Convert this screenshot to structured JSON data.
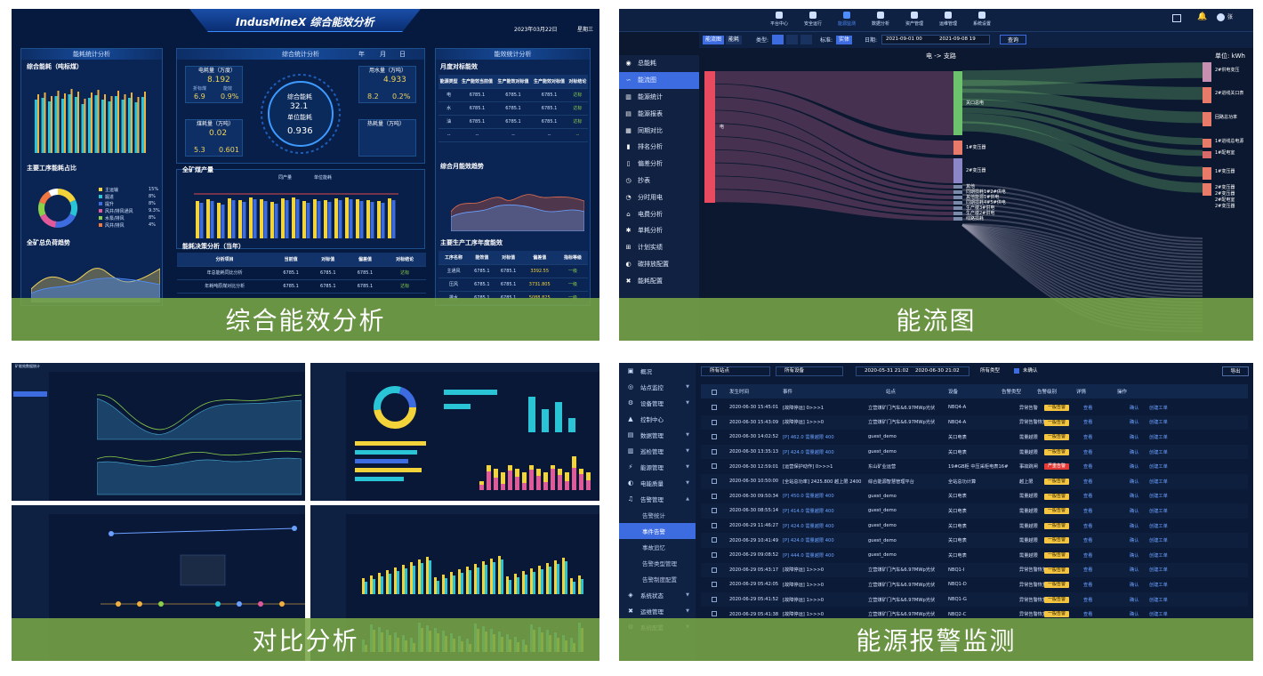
{
  "captions": {
    "p1": "综合能效分析",
    "p2": "能流图",
    "p3": "对比分析",
    "p4": "能源报警监测"
  },
  "p1": {
    "title": "IndusMineX 综合能效分析",
    "date": "2023年03月22日",
    "weekday": "星期三",
    "left_head": "能耗统计分析",
    "center_head": "综合统计分析",
    "right_head": "能效统计分析",
    "sec_total": "综合能耗（吨标煤）",
    "sec_process": "主要工序能耗占比",
    "sec_load": "全矿总负荷趋势",
    "sec_output": "全矿煤产量",
    "sec_decision": "能耗决策分析（当年）",
    "sec_month": "月度对标能效",
    "sec_trend": "综合月能效趋势",
    "sec_year": "主要生产工序年度能效",
    "tab_year": "年",
    "tab_month": "月",
    "tab_day": "日",
    "elec_label": "电耗量（万度）",
    "elec_value": "8.192",
    "gas_label": "用水量（万吨）",
    "gas_value": "4.933",
    "heat_label": "煤耗量（万吨）",
    "heat_value": "0.02",
    "steam_label": "热耗量（万吨）",
    "steam_value": "",
    "k1a": "折标煤",
    "k1b": "能效",
    "k1v1": "6.9",
    "k1v2": "0.9%",
    "k2v1": "8.2",
    "k2v2": "0.2%",
    "k3v1": "5.3",
    "k3v2": "0.601",
    "ring_title": "综合能耗",
    "ring_value": "32.1",
    "ring_unit": "单位能耗",
    "ring_value2": "0.936",
    "legend_a": "同产量",
    "legend_b": "单位能耗",
    "month_cols": [
      "能源类型",
      "生产能效当前值",
      "生产能效对标值",
      "生产能效对标值",
      "对标结论"
    ],
    "month_rows": [
      [
        "电",
        "6785.1",
        "6785.1",
        "6785.1",
        "达标"
      ],
      [
        "水",
        "6785.1",
        "6785.1",
        "6785.1",
        "达标"
      ],
      [
        "油",
        "6785.1",
        "6785.1",
        "6785.1",
        "达标"
      ],
      [
        "--",
        "--",
        "--",
        "--",
        "--"
      ]
    ],
    "dec_cols": [
      "分析项目",
      "当前值",
      "对标值",
      "偏差值",
      "对标结论"
    ],
    "dec_rows": [
      [
        "年总能耗同比分析",
        "6785.1",
        "6785.1",
        "6785.1",
        "达标"
      ],
      [
        "年耗吨原煤对比分析",
        "6785.1",
        "6785.1",
        "6785.1",
        "达标"
      ]
    ],
    "year_cols": [
      "工序名称",
      "能效值",
      "对标值",
      "偏差值",
      "指标等级"
    ],
    "year_rows": [
      [
        "主通风",
        "6785.1",
        "6785.1",
        "3392.55",
        "一级"
      ],
      [
        "压风",
        "6785.1",
        "6785.1",
        "3731.805",
        "一级"
      ],
      [
        "排水",
        "6785.1",
        "6785.1",
        "5088.825",
        "一级"
      ]
    ],
    "donut_items": [
      "主运输",
      "掘进",
      "提升",
      "风井/排风通风",
      "水泵/排风",
      "风井/排风"
    ],
    "donut_pcts": [
      "15%",
      "8%",
      "8%",
      "9.3%",
      "8%",
      "4%"
    ]
  },
  "p2": {
    "nav": [
      "平台中心",
      "安全运行",
      "能源监测",
      "数据分析",
      "资产管理",
      "运维管理",
      "系统设置"
    ],
    "tabs": [
      "能流图",
      "能耗"
    ],
    "period": "类型:",
    "unit_label": "标准:",
    "unit_value": "实体",
    "date_label": "日期:",
    "date_from": "2021-09-01 00",
    "date_to": "2021-09-08 19",
    "query": "查询",
    "chart_title": "电 -> 支路",
    "unit": "单位: kWh",
    "user": "张",
    "side": [
      "总能耗",
      "能流图",
      "能源统计",
      "能源报表",
      "同期对比",
      "排名分析",
      "偏差分析",
      "抄表",
      "分时用电",
      "电费分析",
      "单耗分析",
      "计划实绩",
      "碳排放配置",
      "能耗配置"
    ],
    "src": "电",
    "mid": [
      "关口总电",
      "1#变压器",
      "2#变压器",
      "其他",
      "同期损耗1#2#供电",
      "其他能源1#供电",
      "同期损耗4#5#供电",
      "生产楼3#供电",
      "生产楼2#供电",
      "线路损耗"
    ],
    "right": [
      "2#供电变压",
      "2#进线关口表",
      "回路总功率",
      "1#进线总电源",
      "1#配电室",
      "1#变压器",
      "2#变压器",
      "2#变压器",
      "2#配电室",
      "2#变压器"
    ]
  },
  "p3": {
    "title": "矿能效数据统计"
  },
  "p4": {
    "filters": {
      "station": "所有站点",
      "device": "所有设备",
      "date_from": "2020-05-31 21:02",
      "date_to": "2020-06-30 21:02",
      "type": "所有类型",
      "unconfirmed": "未确认",
      "export": "导出"
    },
    "cols": [
      "发生时间",
      "事件",
      "站点",
      "设备",
      "告警类型",
      "告警级别",
      "详情",
      "操作"
    ],
    "side": [
      "概况",
      "站点监控",
      "设备管理",
      "控制中心",
      "数据管理",
      "巡检管理",
      "能源管理",
      "电能质量",
      "告警管理",
      "告警统计",
      "事件告警",
      "事故追忆",
      "告警类型管理",
      "告警制度配置",
      "系统状态",
      "运维管理",
      "系统配置"
    ],
    "view": "查看",
    "ack": "确认",
    "ticket": "创建工单",
    "rows": [
      [
        "2020-06-30 15:45:01",
        "[故障停运] 0>>>1",
        "立营煤矿门汽车&6.97MWp光伏",
        "NBQ4-A",
        "异常告警",
        "一般告警"
      ],
      [
        "2020-06-30 15:43:09",
        "[故障停运] 1>>>0",
        "立营煤矿门汽车&6.97MWp光伏",
        "NBQ4-A",
        "异常告警恢复",
        "一般告警"
      ],
      [
        "2020-06-30 14:02:52",
        "[P] 462.0 需量越限 400",
        "guest_demo",
        "关口电表",
        "需量越限",
        "一般告警"
      ],
      [
        "2020-06-30 13:35:13",
        "[P] 424.0 需量越限 400",
        "guest_demo",
        "关口电表",
        "需量越限",
        "一般告警"
      ],
      [
        "2020-06-30 12:59:01",
        "[运营保护动作] 0>>>1",
        "东山矿业运营",
        "19#GB柜 中压采柜电表16#",
        "事故跳闸",
        "严重告警"
      ],
      [
        "2020-06-30 10:50:00",
        "[全站总功率] 2425.800 越上限 2400",
        "综合能源智慧管理平台",
        "全站总功计算",
        "越上限",
        "一般告警"
      ],
      [
        "2020-06-30 09:50:34",
        "[P] 450.0 需量越限 400",
        "guest_demo",
        "关口电表",
        "需量越限",
        "一般告警"
      ],
      [
        "2020-06-30 08:55:14",
        "[P] 414.0 需量越限 400",
        "guest_demo",
        "关口电表",
        "需量越限",
        "一般告警"
      ],
      [
        "2020-06-29 11:46:27",
        "[P] 424.0 需量越限 400",
        "guest_demo",
        "关口电表",
        "需量越限",
        "一般告警"
      ],
      [
        "2020-06-29 10:41:49",
        "[P] 424.0 需量越限 400",
        "guest_demo",
        "关口电表",
        "需量越限",
        "一般告警"
      ],
      [
        "2020-06-29 09:08:52",
        "[P] 444.0 需量越限 400",
        "guest_demo",
        "关口电表",
        "需量越限",
        "一般告警"
      ],
      [
        "2020-06-29 05:43:17",
        "[故障停运] 1>>>0",
        "立营煤矿门汽车&6.97MWp光伏",
        "NBQ1-I",
        "异常告警恢复",
        "一般告警"
      ],
      [
        "2020-06-29 05:42:05",
        "[故障停运] 1>>>0",
        "立营煤矿门汽车&6.97MWp光伏",
        "NBQ1-D",
        "异常告警恢复",
        "一般告警"
      ],
      [
        "2020-06-29 05:41:52",
        "[故障停运] 1>>>0",
        "立营煤矿门汽车&6.97MWp光伏",
        "NBQ1-G",
        "异常告警恢复",
        "一般告警"
      ],
      [
        "2020-06-29 05:41:38",
        "[故障停运] 1>>>0",
        "立营煤矿门汽车&6.97MWp光伏",
        "NBQ2-C",
        "异常告警恢复",
        "一般告警"
      ]
    ]
  },
  "colors": {
    "accent": "#3d6be0",
    "caption_bg": "#78a546",
    "yellow": "#f3d33a",
    "cyan": "#29c5d6",
    "warn": "#f5c542",
    "danger": "#e53935"
  }
}
